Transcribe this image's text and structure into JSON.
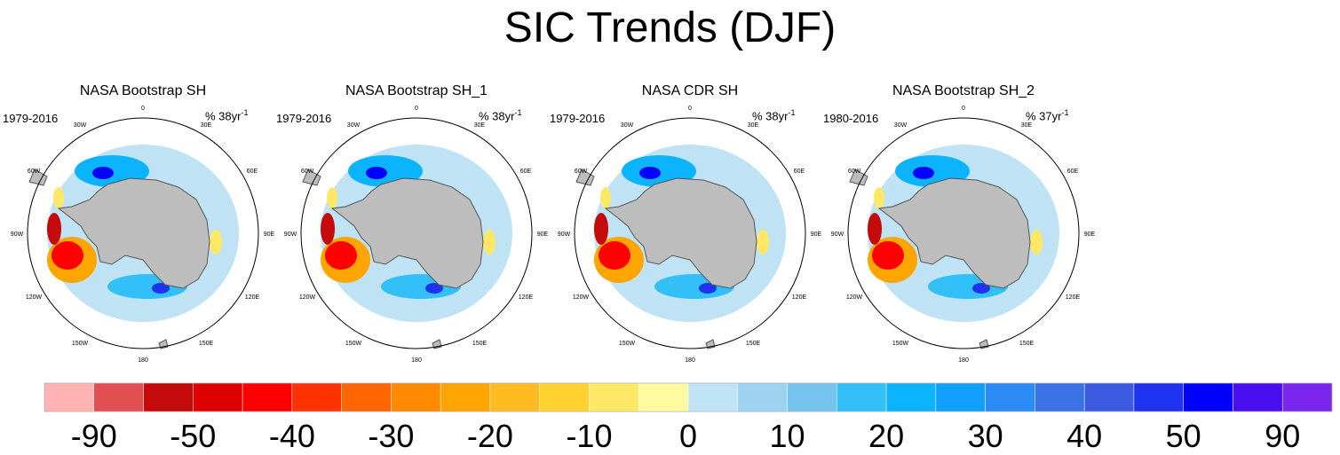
{
  "title": "SIC Trends (DJF)",
  "panels": [
    {
      "title": "NASA Bootstrap SH",
      "years": "1979-2016",
      "units": "% 38yr",
      "units_sup": "-1"
    },
    {
      "title": "NASA Bootstrap SH_1",
      "years": "1979-2016",
      "units": "% 38yr",
      "units_sup": "-1"
    },
    {
      "title": "NASA CDR SH",
      "years": "1979-2016",
      "units": "% 38yr",
      "units_sup": "-1"
    },
    {
      "title": "NASA Bootstrap SH_2",
      "years": "1980-2016",
      "units": "% 37yr",
      "units_sup": "-1"
    }
  ],
  "longitude_labels": [
    "0",
    "30E",
    "60E",
    "90E",
    "120E",
    "150E",
    "180",
    "150W",
    "120W",
    "90W",
    "60W",
    "30W"
  ],
  "colorbar": {
    "colors": [
      "#ffb3b3",
      "#e05050",
      "#c40a0a",
      "#dd0000",
      "#ff0000",
      "#ff3300",
      "#ff6600",
      "#ff8a00",
      "#ffa500",
      "#ffbb22",
      "#ffd230",
      "#ffe866",
      "#fffaa0",
      "#bfe3f5",
      "#9dd2f0",
      "#74c4ee",
      "#33c0f8",
      "#0cb4ff",
      "#12a0ff",
      "#2b8af5",
      "#3a72e6",
      "#3b5ce0",
      "#1e32f0",
      "#0000ff",
      "#4a0fef",
      "#7a26ee"
    ],
    "labels": [
      "-90",
      "-50",
      "-40",
      "-30",
      "-20",
      "-10",
      "0",
      "10",
      "20",
      "30",
      "40",
      "50",
      "90"
    ]
  },
  "map_colors": {
    "land": "#bdbdbd",
    "land_edge": "#555555",
    "circle": "#000000"
  }
}
